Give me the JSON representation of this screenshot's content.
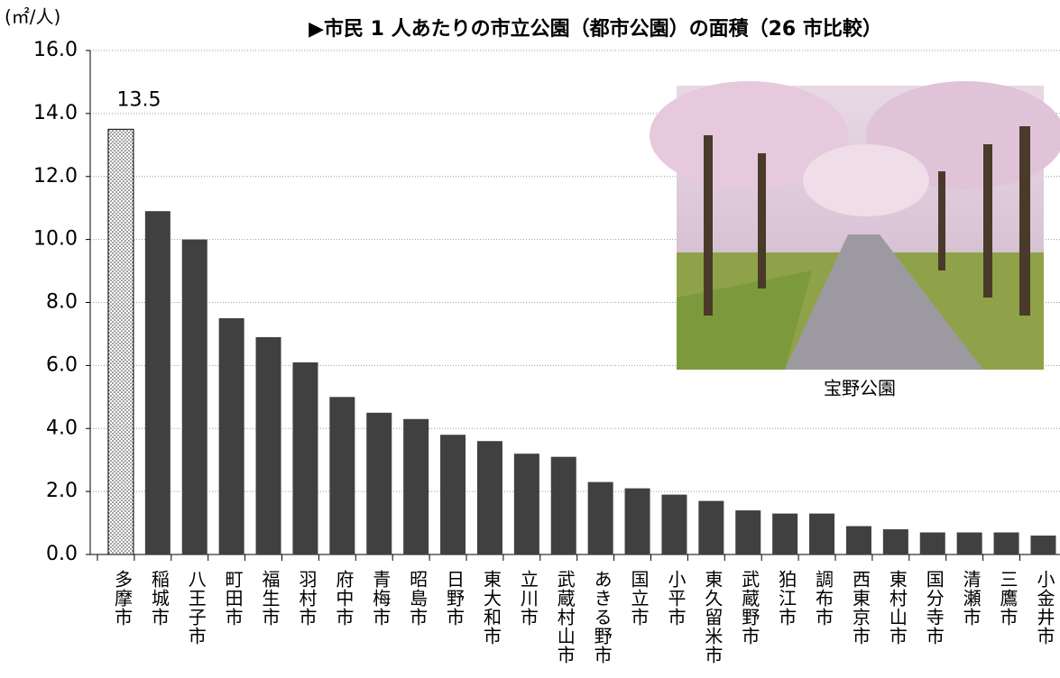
{
  "chart_data": {
    "type": "bar",
    "title": "▶市民 1 人あたりの市立公園（都市公園）の面積（26 市比較）",
    "y_axis_label": "(㎡/人)",
    "categories": [
      "多摩市",
      "稲城市",
      "八王子市",
      "町田市",
      "福生市",
      "羽村市",
      "府中市",
      "青梅市",
      "昭島市",
      "日野市",
      "東大和市",
      "立川市",
      "武蔵村山市",
      "あきる野市",
      "国立市",
      "小平市",
      "東久留米市",
      "武蔵野市",
      "狛江市",
      "調布市",
      "西東京市",
      "東村山市",
      "国分寺市",
      "清瀬市",
      "三鷹市",
      "小金井市"
    ],
    "values": [
      13.5,
      10.9,
      10.0,
      7.5,
      6.9,
      6.1,
      5.0,
      4.5,
      4.3,
      3.8,
      3.6,
      3.2,
      3.1,
      2.3,
      2.1,
      1.9,
      1.7,
      1.4,
      1.3,
      1.3,
      0.9,
      0.8,
      0.7,
      0.7,
      0.7,
      0.6
    ],
    "value_labels": [
      "13.5",
      null,
      null,
      null,
      null,
      null,
      null,
      null,
      null,
      null,
      null,
      null,
      null,
      null,
      null,
      null,
      null,
      null,
      null,
      null,
      null,
      null,
      null,
      null,
      null,
      null
    ],
    "colors": [
      "dotted",
      "#404040",
      "#404040",
      "#404040",
      "#404040",
      "#404040",
      "#404040",
      "#404040",
      "#404040",
      "#404040",
      "#404040",
      "#404040",
      "#404040",
      "#404040",
      "#404040",
      "#404040",
      "#404040",
      "#404040",
      "#404040",
      "#404040",
      "#404040",
      "#404040",
      "#404040",
      "#404040",
      "#404040",
      "#404040"
    ],
    "ylim": [
      0,
      16
    ],
    "yticks": [
      {
        "value": 0,
        "label": "0.0"
      },
      {
        "value": 2,
        "label": "2.0"
      },
      {
        "value": 4,
        "label": "4.0"
      },
      {
        "value": 6,
        "label": "6.0"
      },
      {
        "value": 8,
        "label": "8.0"
      },
      {
        "value": 10,
        "label": "10.0"
      },
      {
        "value": 12,
        "label": "12.0"
      },
      {
        "value": 14,
        "label": "14.0"
      },
      {
        "value": 16,
        "label": "16.0"
      }
    ],
    "grid": true,
    "photo_caption": "宝野公園"
  }
}
